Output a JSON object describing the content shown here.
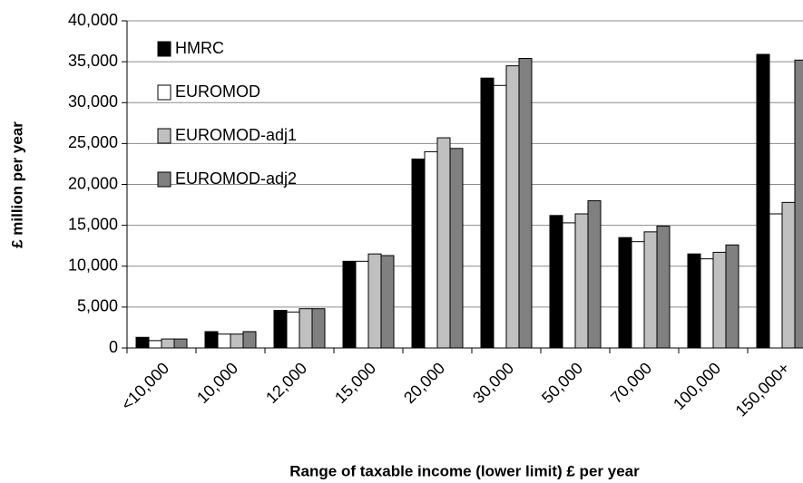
{
  "chart_data": {
    "type": "bar",
    "x_label": "Range of taxable income (lower limit) £ per year",
    "y_label": "£ million per year",
    "categories": [
      "<10,000",
      "10,000",
      "12,000",
      "15,000",
      "20,000",
      "30,000",
      "50,000",
      "70,000",
      "100,000",
      "150,000+"
    ],
    "series": [
      {
        "name": "HMRC",
        "color": "#000000",
        "values": [
          1300,
          2000,
          4600,
          10600,
          23100,
          33000,
          16200,
          13500,
          11500,
          35900
        ]
      },
      {
        "name": "EUROMOD",
        "color": "#ffffff",
        "values": [
          900,
          1700,
          4400,
          10600,
          24000,
          32100,
          15300,
          13000,
          10900,
          16400
        ]
      },
      {
        "name": "EUROMOD-adj1",
        "color": "#c0c0c0",
        "values": [
          1100,
          1700,
          4800,
          11500,
          25700,
          34500,
          16400,
          14200,
          11700,
          17800
        ]
      },
      {
        "name": "EUROMOD-adj2",
        "color": "#808080",
        "values": [
          1100,
          2000,
          4800,
          11300,
          24400,
          35400,
          18000,
          14900,
          12600,
          35200
        ]
      }
    ],
    "ylim": [
      0,
      40000
    ],
    "yticks": [
      0,
      {
        "value": 5000,
        "label": "5,000"
      },
      {
        "value": 10000,
        "label": "10,000"
      },
      {
        "value": 15000,
        "label": "15,000"
      },
      {
        "value": 20000,
        "label": "20,000"
      },
      {
        "value": 25000,
        "label": "25,000"
      },
      {
        "value": 30000,
        "label": "30,000"
      },
      {
        "value": 35000,
        "label": "35,000"
      },
      {
        "value": 40000,
        "label": "40,000"
      }
    ],
    "grid": true,
    "legend": "upper-left"
  }
}
